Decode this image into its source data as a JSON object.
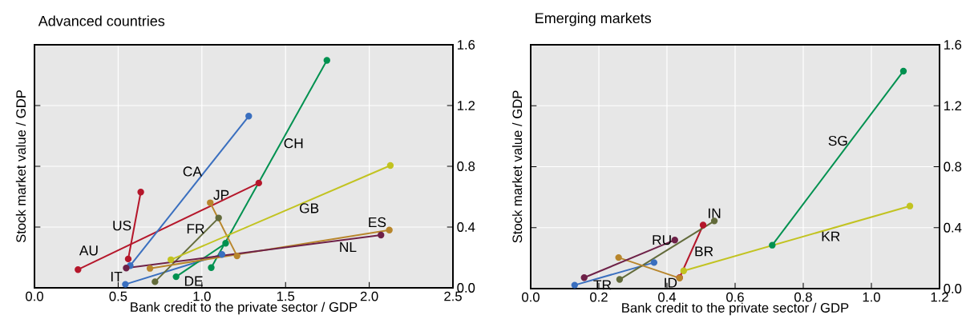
{
  "chart_data": [
    {
      "type": "line",
      "title": "Advanced countries",
      "xlabel": "Bank credit to the private sector / GDP",
      "ylabel": "Stock market value / GDP",
      "xlim": [
        0,
        2.5
      ],
      "ylim": [
        0,
        1.6
      ],
      "xticks": [
        {
          "value": 0,
          "label": "0.0"
        },
        0.5,
        {
          "value": 1,
          "label": "1.0"
        },
        1.5,
        {
          "value": 2,
          "label": "2.0"
        },
        2.5
      ],
      "yticks": [
        {
          "value": 0,
          "label": "0.0"
        },
        0.4,
        0.8,
        1.2,
        1.6
      ],
      "grid": true,
      "legend": false,
      "marker": "circle",
      "line_style": "solid",
      "series": [
        {
          "name": "AU",
          "color": "#b5172b",
          "x": [
            0.26,
            1.34
          ],
          "values": [
            0.12,
            0.69
          ]
        },
        {
          "name": "US",
          "color": "#b5172b",
          "x": [
            0.56,
            0.635
          ],
          "values": [
            0.19,
            0.63
          ]
        },
        {
          "name": "CA",
          "color": "#3a6fbf",
          "x": [
            0.572,
            1.28
          ],
          "values": [
            0.146,
            1.13
          ]
        },
        {
          "name": "IT",
          "color": "#3a6fbf",
          "x": [
            0.543,
            1.12
          ],
          "values": [
            0.023,
            0.22
          ]
        },
        {
          "name": "CH",
          "color": "#009150",
          "x": [
            1.056,
            1.747
          ],
          "values": [
            0.133,
            1.497
          ]
        },
        {
          "name": "DE",
          "color": "#009150",
          "x": [
            0.846,
            1.142
          ],
          "values": [
            0.073,
            0.293
          ]
        },
        {
          "name": "FR",
          "color": "#636b3b",
          "x": [
            0.72,
            1.1
          ],
          "values": [
            0.04,
            0.46
          ]
        },
        {
          "name": "JP",
          "color": "#b8862c",
          "x": [
            1.21,
            1.05
          ],
          "values": [
            0.21,
            0.56
          ]
        },
        {
          "name": "ES",
          "color": "#b8862c",
          "x": [
            0.69,
            2.12
          ],
          "values": [
            0.128,
            0.38
          ]
        },
        {
          "name": "GB",
          "color": "#c2c321",
          "x": [
            0.815,
            2.126
          ],
          "values": [
            0.185,
            0.805
          ]
        },
        {
          "name": "NL",
          "color": "#6e2148",
          "x": [
            0.548,
            2.07
          ],
          "values": [
            0.13,
            0.347
          ]
        }
      ]
    },
    {
      "type": "line",
      "title": "Emerging markets",
      "xlabel": "Bank credit to the private sector / GDP",
      "ylabel": "Stock market value / GDP",
      "xlim": [
        0,
        1.2
      ],
      "ylim": [
        0,
        1.6
      ],
      "xticks": [
        {
          "value": 0,
          "label": "0.0"
        },
        0.2,
        0.4,
        0.6,
        0.8,
        {
          "value": 1,
          "label": "1.0"
        },
        1.2
      ],
      "yticks": [
        {
          "value": 0,
          "label": "0.0"
        },
        0.4,
        0.8,
        1.2,
        1.6
      ],
      "grid": true,
      "legend": false,
      "marker": "circle",
      "line_style": "solid",
      "series": [
        {
          "name": "BR",
          "color": "#b5172b",
          "x": [
            0.437,
            0.506
          ],
          "values": [
            0.072,
            0.417
          ]
        },
        {
          "name": "TR",
          "color": "#3a6fbf",
          "x": [
            0.129,
            0.362
          ],
          "values": [
            0.023,
            0.171
          ]
        },
        {
          "name": "SG",
          "color": "#009150",
          "x": [
            0.709,
            1.094
          ],
          "values": [
            0.285,
            1.427
          ]
        },
        {
          "name": "IN",
          "color": "#636b3b",
          "x": [
            0.261,
            0.539
          ],
          "values": [
            0.06,
            0.444
          ]
        },
        {
          "name": "ID",
          "color": "#b8862c",
          "x": [
            0.437,
            0.258
          ],
          "values": [
            0.069,
            0.204
          ]
        },
        {
          "name": "KR",
          "color": "#c2c321",
          "x": [
            0.449,
            1.113
          ],
          "values": [
            0.117,
            0.542
          ]
        },
        {
          "name": "RU",
          "color": "#6e2148",
          "x": [
            0.157,
            0.423
          ],
          "values": [
            0.072,
            0.319
          ]
        }
      ]
    }
  ]
}
